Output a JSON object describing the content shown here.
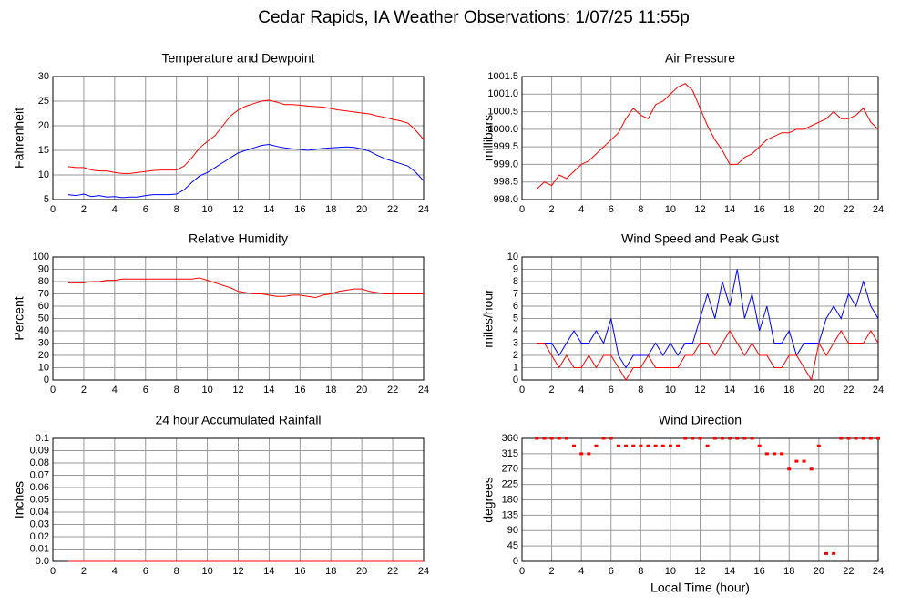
{
  "title": "Cedar Rapids, IA Weather Observations: 1/07/25 11:55p",
  "chart_data": [
    {
      "type": "line",
      "title": "Temperature and Dewpoint",
      "ylabel": "Fahrenheit",
      "x": [
        1,
        1.5,
        2,
        2.5,
        3,
        3.5,
        4,
        4.5,
        5,
        5.5,
        6,
        6.5,
        7,
        7.5,
        8,
        8.5,
        9,
        9.5,
        10,
        10.5,
        11,
        11.5,
        12,
        12.5,
        13,
        13.5,
        14,
        14.5,
        15,
        15.5,
        16,
        16.5,
        17,
        17.5,
        18,
        18.5,
        19,
        19.5,
        20,
        20.5,
        21,
        21.5,
        22,
        22.5,
        23,
        23.5,
        24
      ],
      "series": [
        {
          "color": "#ff0000",
          "values": [
            11.7,
            11.5,
            11.5,
            11,
            10.8,
            10.8,
            10.5,
            10.3,
            10.3,
            10.5,
            10.7,
            10.9,
            11,
            11,
            11,
            11.8,
            13.5,
            15.5,
            16.8,
            18,
            20,
            22,
            23.2,
            24,
            24.5,
            25,
            25.2,
            24.8,
            24.3,
            24.3,
            24.2,
            24,
            23.9,
            23.8,
            23.5,
            23.2,
            23,
            22.8,
            22.6,
            22.4,
            22,
            21.7,
            21.3,
            21,
            20.5,
            19,
            17.2
          ]
        },
        {
          "color": "#0000ff",
          "values": [
            6,
            5.8,
            6.1,
            5.6,
            5.8,
            5.5,
            5.6,
            5.4,
            5.5,
            5.5,
            5.8,
            6,
            6,
            6,
            6.1,
            7,
            8.5,
            9.8,
            10.5,
            11.5,
            12.5,
            13.5,
            14.5,
            15,
            15.5,
            16,
            16.2,
            15.8,
            15.5,
            15.3,
            15.2,
            15,
            15.2,
            15.4,
            15.5,
            15.6,
            15.7,
            15.6,
            15.3,
            14.8,
            14,
            13.3,
            12.8,
            12.3,
            11.8,
            10.5,
            8.8
          ]
        }
      ],
      "xlim": [
        0,
        24
      ],
      "xticks": [
        0,
        2,
        4,
        6,
        8,
        10,
        12,
        14,
        16,
        18,
        20,
        22,
        24
      ],
      "ylim": [
        5,
        30
      ],
      "yticks": [
        5,
        10,
        15,
        20,
        25,
        30
      ],
      "grid": true
    },
    {
      "type": "line",
      "title": "Air Pressure",
      "ylabel": "millibars",
      "x": [
        1,
        1.5,
        2,
        2.5,
        3,
        3.5,
        4,
        4.5,
        5,
        5.5,
        6,
        6.5,
        7,
        7.5,
        8,
        8.5,
        9,
        9.5,
        10,
        10.5,
        11,
        11.5,
        12,
        12.5,
        13,
        13.5,
        14,
        14.5,
        15,
        15.5,
        16,
        16.5,
        17,
        17.5,
        18,
        18.5,
        19,
        19.5,
        20,
        20.5,
        21,
        21.5,
        22,
        22.5,
        23,
        23.5,
        24
      ],
      "series": [
        {
          "color": "#ff0000",
          "values": [
            998.3,
            998.5,
            998.4,
            998.7,
            998.6,
            998.8,
            999.0,
            999.1,
            999.3,
            999.5,
            999.7,
            999.9,
            1000.3,
            1000.6,
            1000.4,
            1000.3,
            1000.7,
            1000.8,
            1001.0,
            1001.2,
            1001.3,
            1001.1,
            1000.6,
            1000.1,
            999.7,
            999.4,
            999.0,
            999.0,
            999.2,
            999.3,
            999.5,
            999.7,
            999.8,
            999.9,
            999.9,
            1000.0,
            1000.0,
            1000.1,
            1000.2,
            1000.3,
            1000.5,
            1000.3,
            1000.3,
            1000.4,
            1000.6,
            1000.2,
            1000.0
          ]
        }
      ],
      "xlim": [
        0,
        24
      ],
      "xticks": [
        0,
        2,
        4,
        6,
        8,
        10,
        12,
        14,
        16,
        18,
        20,
        22,
        24
      ],
      "ylim": [
        998,
        1001.5
      ],
      "yticks": [
        {
          "value": 998,
          "label": "998.0"
        },
        998.5,
        {
          "value": 999,
          "label": "999.0"
        },
        999.5,
        {
          "value": 1000,
          "label": "1000.0"
        },
        1000.5,
        {
          "value": 1001,
          "label": "1001.0"
        },
        1001.5
      ],
      "grid": true
    },
    {
      "type": "line",
      "title": "Relative Humidity",
      "ylabel": "Percent",
      "x": [
        1,
        1.5,
        2,
        2.5,
        3,
        3.5,
        4,
        4.5,
        5,
        5.5,
        6,
        6.5,
        7,
        7.5,
        8,
        8.5,
        9,
        9.5,
        10,
        10.5,
        11,
        11.5,
        12,
        12.5,
        13,
        13.5,
        14,
        14.5,
        15,
        15.5,
        16,
        16.5,
        17,
        17.5,
        18,
        18.5,
        19,
        19.5,
        20,
        20.5,
        21,
        21.5,
        22,
        22.5,
        23,
        23.5,
        24
      ],
      "series": [
        {
          "color": "#ff0000",
          "values": [
            79,
            79,
            79,
            80,
            80,
            81,
            81,
            82,
            82,
            82,
            82,
            82,
            82,
            82,
            82,
            82,
            82,
            83,
            81,
            79,
            77,
            75,
            72,
            71,
            70,
            70,
            69,
            68,
            68,
            69,
            69,
            68,
            67,
            69,
            70,
            72,
            73,
            74,
            74,
            72,
            71,
            70,
            70,
            70,
            70,
            70,
            70
          ]
        }
      ],
      "xlim": [
        0,
        24
      ],
      "xticks": [
        0,
        2,
        4,
        6,
        8,
        10,
        12,
        14,
        16,
        18,
        20,
        22,
        24
      ],
      "ylim": [
        0,
        100
      ],
      "yticks": [
        0,
        10,
        20,
        30,
        40,
        50,
        60,
        70,
        80,
        90,
        100
      ],
      "grid": true
    },
    {
      "type": "line",
      "title": "Wind Speed and Peak Gust",
      "ylabel": "miles/hour",
      "x": [
        1,
        1.5,
        2,
        2.5,
        3,
        3.5,
        4,
        4.5,
        5,
        5.5,
        6,
        6.5,
        7,
        7.5,
        8,
        8.5,
        9,
        9.5,
        10,
        10.5,
        11,
        11.5,
        12,
        12.5,
        13,
        13.5,
        14,
        14.5,
        15,
        15.5,
        16,
        16.5,
        17,
        17.5,
        18,
        18.5,
        19,
        19.5,
        20,
        20.5,
        21,
        21.5,
        22,
        22.5,
        23,
        23.5,
        24
      ],
      "series": [
        {
          "color": "#0000ff",
          "values": [
            3,
            3,
            3,
            2,
            3,
            4,
            3,
            3,
            4,
            3,
            5,
            2,
            1,
            2,
            2,
            2,
            3,
            2,
            3,
            2,
            3,
            3,
            5,
            7,
            5,
            8,
            6,
            9,
            5,
            7,
            4,
            6,
            3,
            3,
            4,
            2,
            3,
            3,
            3,
            5,
            6,
            5,
            7,
            6,
            8,
            6,
            5
          ]
        },
        {
          "color": "#ff0000",
          "values": [
            3,
            3,
            2,
            1,
            2,
            1,
            1,
            2,
            1,
            2,
            2,
            1,
            0,
            1,
            1,
            2,
            1,
            1,
            1,
            1,
            2,
            2,
            3,
            3,
            2,
            3,
            4,
            3,
            2,
            3,
            2,
            2,
            1,
            1,
            2,
            2,
            1,
            0,
            3,
            2,
            3,
            4,
            3,
            3,
            3,
            4,
            3
          ]
        }
      ],
      "xlim": [
        0,
        24
      ],
      "xticks": [
        0,
        2,
        4,
        6,
        8,
        10,
        12,
        14,
        16,
        18,
        20,
        22,
        24
      ],
      "ylim": [
        0,
        10
      ],
      "yticks": [
        0,
        1,
        2,
        3,
        4,
        5,
        6,
        7,
        8,
        9,
        10
      ],
      "grid": true
    },
    {
      "type": "line",
      "title": "24 hour Accumulated Rainfall",
      "ylabel": "Inches",
      "x": [
        1,
        1.5,
        2,
        2.5,
        3,
        3.5,
        4,
        4.5,
        5,
        5.5,
        6,
        6.5,
        7,
        7.5,
        8,
        8.5,
        9,
        9.5,
        10,
        10.5,
        11,
        11.5,
        12,
        12.5,
        13,
        13.5,
        14,
        14.5,
        15,
        15.5,
        16,
        16.5,
        17,
        17.5,
        18,
        18.5,
        19,
        19.5,
        20,
        20.5,
        21,
        21.5,
        22,
        22.5,
        23,
        23.5,
        24
      ],
      "series": [
        {
          "color": "#ff0000",
          "values": [
            0,
            0,
            0,
            0,
            0,
            0,
            0,
            0,
            0,
            0,
            0,
            0,
            0,
            0,
            0,
            0,
            0,
            0,
            0,
            0,
            0,
            0,
            0,
            0,
            0,
            0,
            0,
            0,
            0,
            0,
            0,
            0,
            0,
            0,
            0,
            0,
            0,
            0,
            0,
            0,
            0,
            0,
            0,
            0,
            0,
            0,
            0
          ]
        }
      ],
      "xlim": [
        0,
        24
      ],
      "xticks": [
        0,
        2,
        4,
        6,
        8,
        10,
        12,
        14,
        16,
        18,
        20,
        22,
        24
      ],
      "ylim": [
        0,
        0.1
      ],
      "yticks": [
        {
          "value": 0,
          "label": "0.0"
        },
        0.01,
        0.02,
        0.03,
        0.04,
        0.05,
        0.06,
        0.07,
        0.08,
        0.09,
        0.1
      ],
      "grid": true
    },
    {
      "type": "scatter",
      "title": "Wind Direction",
      "ylabel": "degrees",
      "xlabel": "Local Time (hour)",
      "x": [
        1,
        1.5,
        2,
        2.5,
        3,
        3.5,
        4,
        4.5,
        5,
        5.5,
        6,
        6.5,
        7,
        7.5,
        8,
        8.5,
        9,
        9.5,
        10,
        10.5,
        11,
        11.5,
        12,
        12.5,
        13,
        13.5,
        14,
        14.5,
        15,
        15.5,
        16,
        16.5,
        17,
        17.5,
        18,
        18.5,
        19,
        19.5,
        20,
        20.5,
        21,
        21.5,
        22,
        22.5,
        23,
        23.5,
        24
      ],
      "series": [
        {
          "color": "#ff0000",
          "values": [
            360,
            360,
            360,
            360,
            360,
            338,
            315,
            315,
            338,
            360,
            360,
            338,
            338,
            338,
            338,
            338,
            338,
            338,
            338,
            338,
            360,
            360,
            360,
            338,
            360,
            360,
            360,
            360,
            360,
            360,
            338,
            315,
            315,
            315,
            270,
            293,
            293,
            270,
            338,
            23,
            23,
            360,
            360,
            360,
            360,
            360,
            360
          ]
        }
      ],
      "xlim": [
        0,
        24
      ],
      "xticks": [
        0,
        2,
        4,
        6,
        8,
        10,
        12,
        14,
        16,
        18,
        20,
        22,
        24
      ],
      "ylim": [
        0,
        360
      ],
      "yticks": [
        0,
        45,
        90,
        135,
        180,
        225,
        270,
        315,
        360
      ],
      "grid": true
    }
  ]
}
